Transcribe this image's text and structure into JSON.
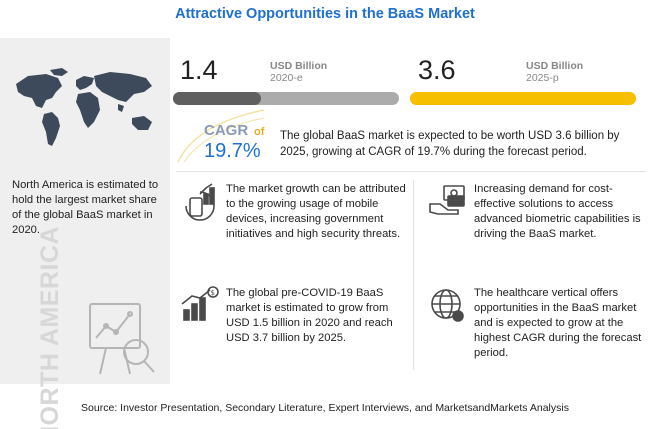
{
  "title": "Attractive Opportunities in the BaaS Market",
  "left_panel": {
    "text": "North America is estimated to hold the largest market share of the global BaaS market in 2020.",
    "region_label": "NORTH AMERICA",
    "map_icon": "world-map-icon",
    "analysis_icon": "analytics-magnifier-icon"
  },
  "values": [
    {
      "value": "1.4",
      "unit": "USD Billion",
      "year": "2020-e",
      "bar_fraction": 0.389
    },
    {
      "value": "3.6",
      "unit": "USD Billion",
      "year": "2025-p",
      "bar_fraction": 1.0
    }
  ],
  "cagr": {
    "label": "CAGR",
    "of": "of",
    "value": "19.7%",
    "text": "The global BaaS market is expected to be worth USD 3.6 billion by 2025, growing at CAGR of 19.7% during the forecast period."
  },
  "boxes": [
    {
      "icon": "mobile-growth-icon",
      "text": "The market growth can be attributed to the growing usage of mobile devices, increasing government initiatives and high security threats."
    },
    {
      "icon": "biometric-payment-icon",
      "text": "Increasing demand for cost-effective solutions to access advanced biometric capabilities is driving the BaaS market."
    },
    {
      "icon": "growth-chart-dollar-icon",
      "text": "The global pre-COVID-19 BaaS market is estimated to grow from USD 1.5 billion in 2020 and reach USD 3.7 billion by 2025."
    },
    {
      "icon": "globe-healthcare-icon",
      "text": "The healthcare vertical offers opportunities in the BaaS market and is expected to grow at the highest CAGR during the forecast period."
    }
  ],
  "source": "Source: Investor Presentation, Secondary Literature, Expert Interviews, and MarketsandMarkets Analysis",
  "colors": {
    "title": "#1f6fd1",
    "bar_2020": "#5f5f5f",
    "bar_2025": "#f6bf00",
    "cagr_value": "#1f6fd1"
  }
}
